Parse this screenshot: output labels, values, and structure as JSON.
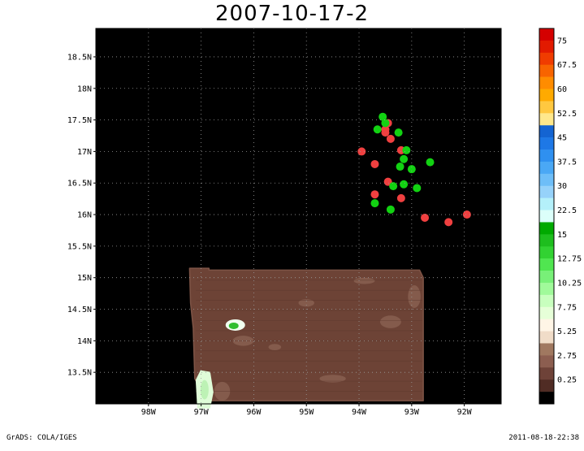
{
  "title": "2007-10-17-2",
  "footer": {
    "left": "GrADS: COLA/IGES",
    "right": "2011-08-18-22:38"
  },
  "map": {
    "background": "#000000",
    "lon_range": [
      -99,
      -91.3
    ],
    "lat_range": [
      13.0,
      18.95
    ],
    "lat_ticks": [
      {
        "value": 13.5,
        "label": "13.5N"
      },
      {
        "value": 14,
        "label": "14N"
      },
      {
        "value": 14.5,
        "label": "14.5N"
      },
      {
        "value": 15,
        "label": "15N"
      },
      {
        "value": 15.5,
        "label": "15.5N"
      },
      {
        "value": 16,
        "label": "16N"
      },
      {
        "value": 16.5,
        "label": "16.5N"
      },
      {
        "value": 17,
        "label": "17N"
      },
      {
        "value": 17.5,
        "label": "17.5N"
      },
      {
        "value": 18,
        "label": "18N"
      },
      {
        "value": 18.5,
        "label": "18.5N"
      }
    ],
    "lon_ticks": [
      {
        "value": -98,
        "label": "98W"
      },
      {
        "value": -97,
        "label": "97W"
      },
      {
        "value": -96,
        "label": "96W"
      },
      {
        "value": -95,
        "label": "95W"
      },
      {
        "value": -94,
        "label": "94W"
      },
      {
        "value": -93,
        "label": "93W"
      },
      {
        "value": -92,
        "label": "92W"
      }
    ],
    "grid": true,
    "points_red": [
      [
        -93.5,
        17.35
      ],
      [
        -93.45,
        17.45
      ],
      [
        -93.5,
        17.3
      ],
      [
        -93.4,
        17.2
      ],
      [
        -93.95,
        17.0
      ],
      [
        -93.2,
        17.02
      ],
      [
        -93.7,
        16.8
      ],
      [
        -93.45,
        16.52
      ],
      [
        -93.7,
        16.32
      ],
      [
        -93.2,
        16.26
      ],
      [
        -92.75,
        15.95
      ],
      [
        -92.3,
        15.88
      ],
      [
        -91.95,
        16.0
      ]
    ],
    "points_green": [
      [
        -93.55,
        17.55
      ],
      [
        -93.5,
        17.45
      ],
      [
        -93.65,
        17.35
      ],
      [
        -93.25,
        17.3
      ],
      [
        -93.1,
        17.02
      ],
      [
        -93.15,
        16.88
      ],
      [
        -93.22,
        16.76
      ],
      [
        -93.0,
        16.72
      ],
      [
        -92.65,
        16.83
      ],
      [
        -93.35,
        16.45
      ],
      [
        -93.15,
        16.48
      ],
      [
        -92.9,
        16.42
      ],
      [
        -93.7,
        16.18
      ],
      [
        -93.4,
        16.08
      ]
    ],
    "shaded_region": {
      "polygon": [
        [
          -97.22,
          15.15
        ],
        [
          -96.85,
          15.15
        ],
        [
          -96.85,
          15.12
        ],
        [
          -92.85,
          15.12
        ],
        [
          -92.78,
          15.0
        ],
        [
          -92.78,
          13.05
        ],
        [
          -96.9,
          13.05
        ],
        [
          -97.12,
          13.4
        ],
        [
          -97.15,
          14.2
        ],
        [
          -97.2,
          14.6
        ]
      ],
      "base_color": "#6d4336",
      "patches": [
        {
          "lon": -96.35,
          "lat": 14.25,
          "fill": "#f0fff0",
          "inner": "#2fbf2f"
        },
        {
          "lon": -96.95,
          "lat": 13.25,
          "fill": "#dffcd8",
          "inner": "#bdf2b5"
        }
      ]
    }
  },
  "colorbar": {
    "labels": [
      "75",
      "67.5",
      "60",
      "52.5",
      "45",
      "37.5",
      "30",
      "22.5",
      "15",
      "12.75",
      "10.25",
      "7.75",
      "5.25",
      "2.75",
      "0.25"
    ],
    "colors": [
      "#d40000",
      "#e21a00",
      "#f03c00",
      "#f86400",
      "#ff8c00",
      "#ffaa00",
      "#ffc840",
      "#ffe88c",
      "#1464d2",
      "#1e78e6",
      "#2f90f0",
      "#4aa8f5",
      "#6ebef8",
      "#96d2fa",
      "#b4f0fa",
      "#dcfffa",
      "#00aa00",
      "#1ebe1e",
      "#32d232",
      "#50e650",
      "#78f078",
      "#a0fa9a",
      "#c8ffbe",
      "#e6ffd8",
      "#fff5e6",
      "#f0dcc8",
      "#a07860",
      "#8c5e50",
      "#6e4238",
      "#502c24",
      "#000000"
    ]
  }
}
